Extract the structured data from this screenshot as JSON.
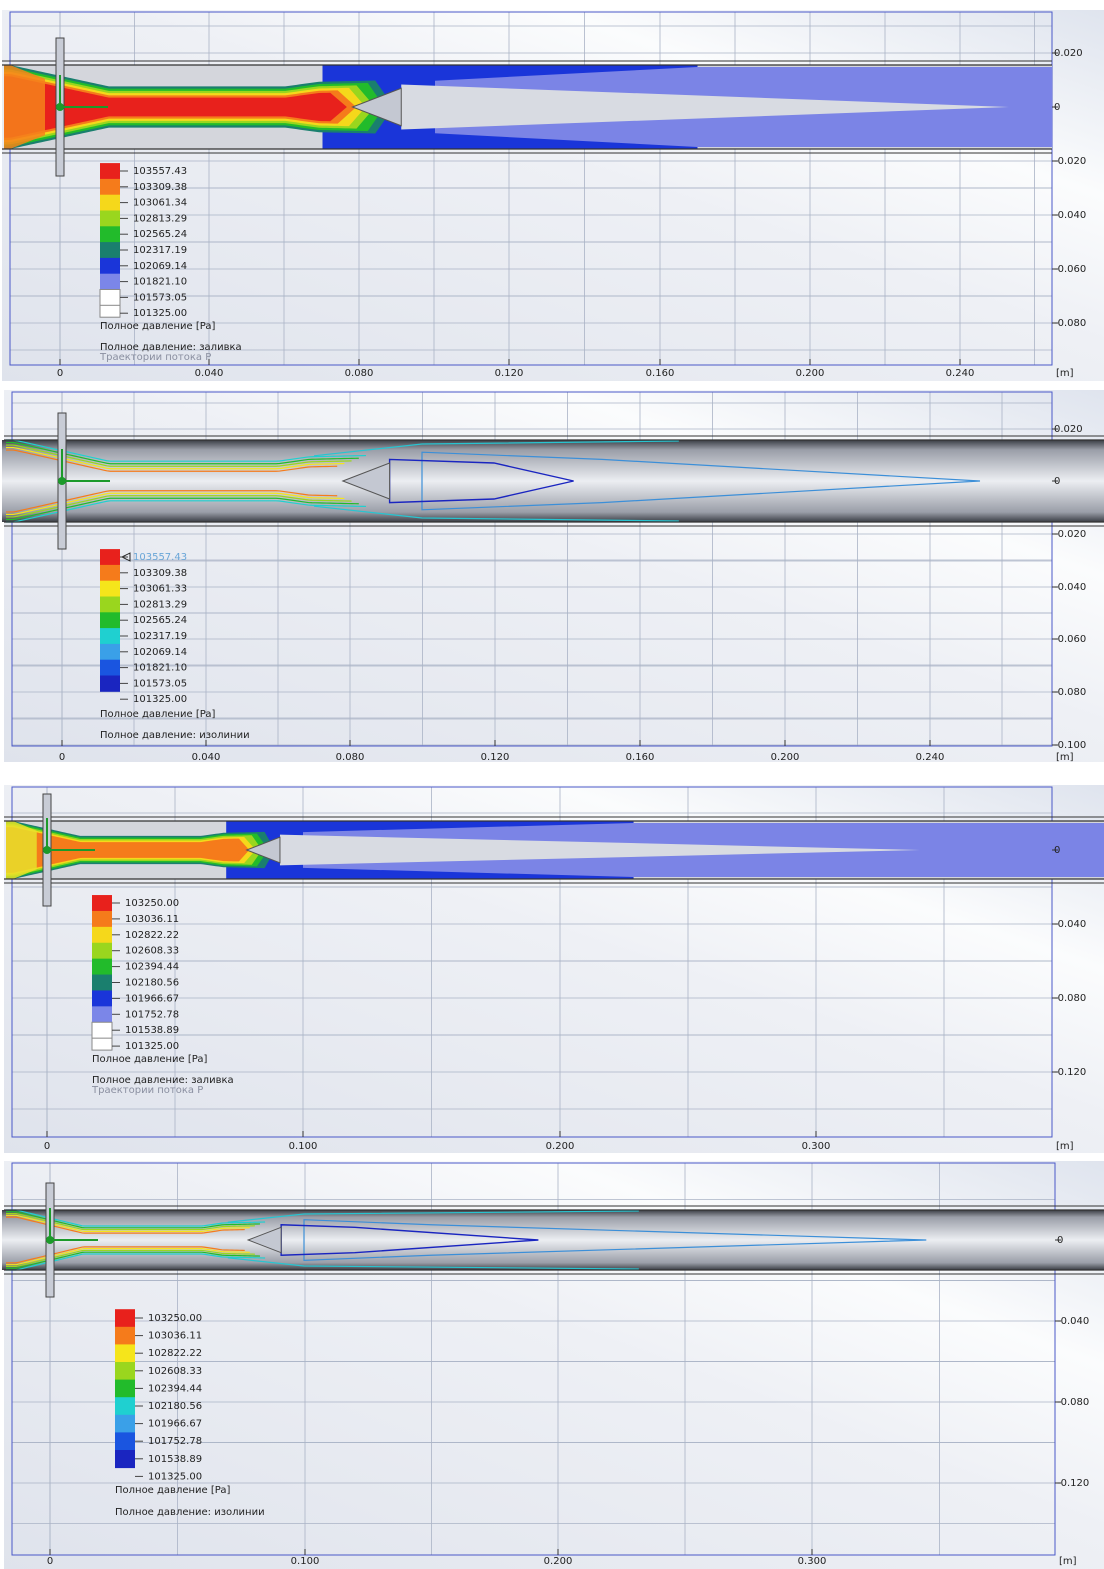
{
  "panels": [
    {
      "x_ticks": [
        "0",
        "0.040",
        "0.080",
        "0.120",
        "0.160",
        "0.200",
        "0.240"
      ],
      "x_unit": "[m]",
      "y_ticks": [
        "0.020",
        "0",
        "-0.020",
        "-0.040",
        "-0.060",
        "-0.080"
      ],
      "legend_values": [
        "103557.43",
        "103309.38",
        "103061.34",
        "102813.29",
        "102565.24",
        "102317.19",
        "102069.14",
        "101821.10",
        "101573.05",
        "101325.00"
      ],
      "legend_title": "Полное давление [Pa]",
      "caption": "Полное давление: заливка",
      "subcaption": "Траектории потока P"
    },
    {
      "x_ticks": [
        "0",
        "0.040",
        "0.080",
        "0.120",
        "0.160",
        "0.200",
        "0.240"
      ],
      "x_unit": "[m]",
      "y_ticks": [
        "0.020",
        "0",
        "-0.020",
        "-0.040",
        "-0.060",
        "-0.080",
        "-0.100"
      ],
      "legend_values": [
        "103557.43",
        "103309.38",
        "103061.33",
        "102813.29",
        "102565.24",
        "102317.19",
        "102069.14",
        "101821.10",
        "101573.05",
        "101325.00"
      ],
      "legend_title": "Полное давление [Pa]",
      "caption": "Полное давление: изолинии"
    },
    {
      "x_ticks": [
        "0",
        "0.100",
        "0.200",
        "0.300"
      ],
      "x_unit": "[m]",
      "y_ticks": [
        "0",
        "-0.040",
        "-0.080",
        "-0.120"
      ],
      "legend_values": [
        "103250.00",
        "103036.11",
        "102822.22",
        "102608.33",
        "102394.44",
        "102180.56",
        "101966.67",
        "101752.78",
        "101538.89",
        "101325.00"
      ],
      "legend_title": "Полное давление [Pa]",
      "caption": "Полное давление: заливка",
      "subcaption": "Траектории потока P"
    },
    {
      "x_ticks": [
        "0",
        "0.100",
        "0.200",
        "0.300"
      ],
      "x_unit": "[m]",
      "y_ticks": [
        "0",
        "-0.040",
        "-0.080",
        "-0.120"
      ],
      "legend_values": [
        "103250.00",
        "103036.11",
        "102822.22",
        "102608.33",
        "102394.44",
        "102180.56",
        "101966.67",
        "101752.78",
        "101538.89",
        "101325.00"
      ],
      "legend_title": "Полное давление [Pa]",
      "caption": "Полное давление: изолинии"
    }
  ]
}
